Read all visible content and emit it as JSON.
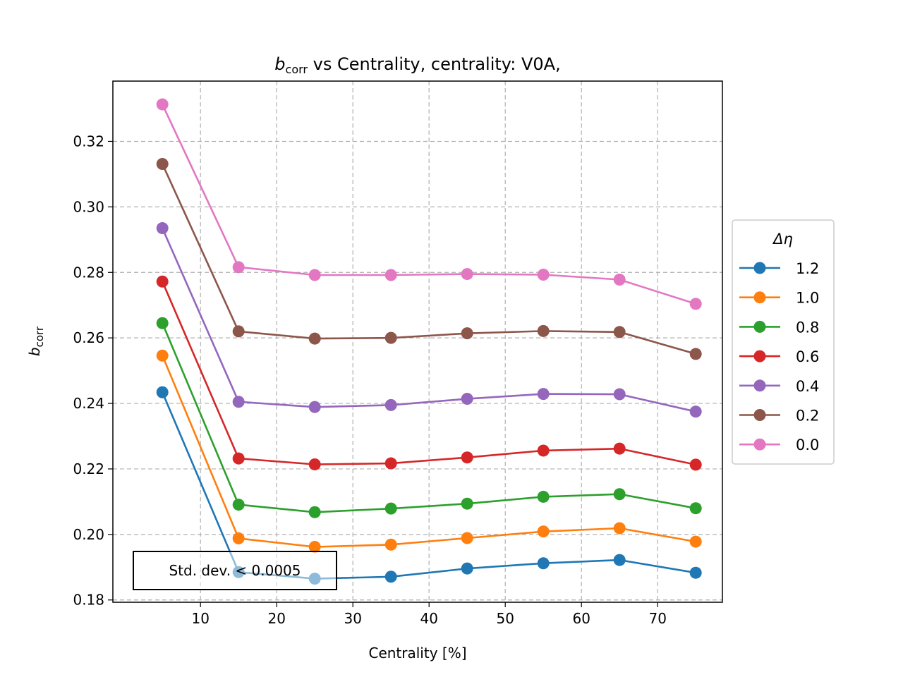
{
  "chart_data": {
    "type": "line",
    "title": {
      "main": "b",
      "sub": "corr",
      "rest": " vs Centrality, centrality: V0A,"
    },
    "xlabel": "Centrality [%]",
    "ylabel": {
      "main": "b",
      "sub": "corr"
    },
    "xlim": [
      -1.5,
      78.5
    ],
    "ylim": [
      0.1793,
      0.3384
    ],
    "xticks": [
      10,
      20,
      30,
      40,
      50,
      60,
      70
    ],
    "yticks": [
      0.18,
      0.2,
      0.22,
      0.24,
      0.26,
      0.28,
      0.3,
      0.32
    ],
    "ytick_labels": [
      "0.18",
      "0.20",
      "0.22",
      "0.24",
      "0.26",
      "0.28",
      "0.30",
      "0.32"
    ],
    "grid": true,
    "legend": {
      "title": "Δη",
      "placement": "outside-right"
    },
    "x": [
      5,
      15,
      25,
      35,
      45,
      55,
      65,
      75
    ],
    "series": [
      {
        "name": "1.2",
        "color": "#1f77b4",
        "values": [
          0.2434,
          0.1885,
          0.1865,
          0.1871,
          0.1896,
          0.1912,
          0.1922,
          0.1883
        ]
      },
      {
        "name": "1.0",
        "color": "#ff7f0e",
        "values": [
          0.2546,
          0.1988,
          0.1962,
          0.1969,
          0.1989,
          0.2009,
          0.2019,
          0.1978
        ]
      },
      {
        "name": "0.8",
        "color": "#2ca02c",
        "values": [
          0.2645,
          0.2091,
          0.2068,
          0.2079,
          0.2094,
          0.2115,
          0.2123,
          0.208
        ]
      },
      {
        "name": "0.6",
        "color": "#d62728",
        "values": [
          0.2772,
          0.2232,
          0.2214,
          0.2217,
          0.2235,
          0.2256,
          0.2262,
          0.2213
        ]
      },
      {
        "name": "0.4",
        "color": "#9467bd",
        "values": [
          0.2935,
          0.2405,
          0.2389,
          0.2395,
          0.2414,
          0.2429,
          0.2428,
          0.2375
        ]
      },
      {
        "name": "0.2",
        "color": "#8c564b",
        "values": [
          0.3131,
          0.262,
          0.2598,
          0.26,
          0.2614,
          0.2621,
          0.2618,
          0.2551
        ]
      },
      {
        "name": "0.0",
        "color": "#e377c2",
        "values": [
          0.3313,
          0.2816,
          0.2792,
          0.2792,
          0.2795,
          0.2793,
          0.2778,
          0.2704
        ]
      }
    ],
    "annotation": "Std. dev. < 0.0005"
  }
}
